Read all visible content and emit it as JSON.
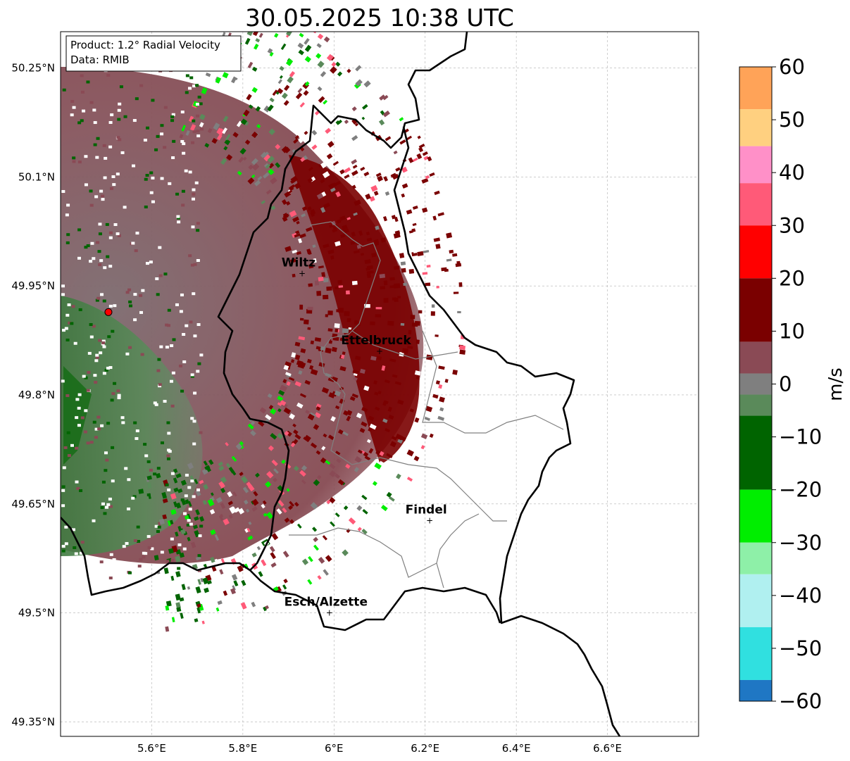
{
  "title": "30.05.2025 10:38 UTC",
  "info_box": {
    "product": "Product: 1.2° Radial Velocity",
    "data": "Data: RMIB"
  },
  "map": {
    "lon_range": [
      5.4,
      6.8
    ],
    "lat_range": [
      49.33,
      50.3
    ],
    "x_ticks": [
      {
        "value": 5.6,
        "label": "5.6°E"
      },
      {
        "value": 5.8,
        "label": "5.8°E"
      },
      {
        "value": 6.0,
        "label": "6°E"
      },
      {
        "value": 6.2,
        "label": "6.2°E"
      },
      {
        "value": 6.4,
        "label": "6.4°E"
      },
      {
        "value": 6.6,
        "label": "6.6°E"
      }
    ],
    "y_ticks": [
      {
        "value": 50.25,
        "label": "50.25°N"
      },
      {
        "value": 50.1,
        "label": "50.1°N"
      },
      {
        "value": 49.95,
        "label": "49.95°N"
      },
      {
        "value": 49.8,
        "label": "49.8°N"
      },
      {
        "value": 49.65,
        "label": "49.65°N"
      },
      {
        "value": 49.5,
        "label": "49.5°N"
      },
      {
        "value": 49.35,
        "label": "49.35°N"
      }
    ],
    "grid": true,
    "radar_site": {
      "lon": 5.505,
      "lat": 49.914,
      "color": "#ff0000"
    },
    "cities": [
      {
        "name": "Wiltz",
        "lon": 5.93,
        "lat": 49.967
      },
      {
        "name": "Ettelbruck",
        "lon": 6.1,
        "lat": 49.86
      },
      {
        "name": "Findel",
        "lon": 6.21,
        "lat": 49.627
      },
      {
        "name": "Esch/Alzette",
        "lon": 5.99,
        "lat": 49.5
      }
    ]
  },
  "colorbar": {
    "label": "m/s",
    "min": -60,
    "max": 60,
    "ticks": [
      {
        "value": 60,
        "label": "60"
      },
      {
        "value": 50,
        "label": "50"
      },
      {
        "value": 40,
        "label": "40"
      },
      {
        "value": 30,
        "label": "30"
      },
      {
        "value": 20,
        "label": "20"
      },
      {
        "value": 10,
        "label": "10"
      },
      {
        "value": 0,
        "label": "0"
      },
      {
        "value": -10,
        "label": "−10"
      },
      {
        "value": -20,
        "label": "−20"
      },
      {
        "value": -30,
        "label": "−30"
      },
      {
        "value": -40,
        "label": "−40"
      },
      {
        "value": -50,
        "label": "−50"
      },
      {
        "value": -60,
        "label": "−60"
      }
    ],
    "colors": {
      "pos_high": "#ffa358",
      "pos_pink": "#ff5a78",
      "pos_red": "#ff0000",
      "pos_dark": "#7a0000",
      "near_pos": "#8a4a55",
      "near_zero": "#7f7f7f",
      "near_neg": "#5a8a5a",
      "neg_dark": "#006400",
      "neg_green": "#00ee00",
      "neg_light": "#8ef0a8",
      "neg_cyan": "#b0f0f0",
      "neg_turq": "#30e0e0",
      "neg_blue": "#1f77c4"
    }
  }
}
